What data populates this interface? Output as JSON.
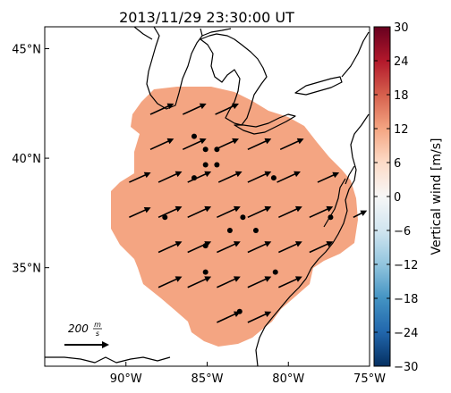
{
  "title": "2013/11/29 23:30:00 UT",
  "map": {
    "lon_range": [
      -95,
      -75
    ],
    "lat_range": [
      30.5,
      46
    ],
    "lon_ticks": [
      {
        "value": -90,
        "label": "90°W"
      },
      {
        "value": -85,
        "label": "85°W"
      },
      {
        "value": -80,
        "label": "80°W"
      },
      {
        "value": -75,
        "label": "75°W"
      }
    ],
    "lat_ticks": [
      {
        "value": 45,
        "label": "45°N"
      },
      {
        "value": 40,
        "label": "40°N"
      },
      {
        "value": 35,
        "label": "35°N"
      }
    ],
    "field_color": "#f4a582",
    "coast_color": "#000000",
    "sites": [
      {
        "lon": -85.8,
        "lat": 41.0
      },
      {
        "lon": -85.1,
        "lat": 40.4
      },
      {
        "lon": -84.4,
        "lat": 40.4
      },
      {
        "lon": -85.1,
        "lat": 39.7
      },
      {
        "lon": -84.4,
        "lat": 39.7
      },
      {
        "lon": -85.8,
        "lat": 39.1
      },
      {
        "lon": -80.9,
        "lat": 39.1
      },
      {
        "lon": -87.6,
        "lat": 37.3
      },
      {
        "lon": -82.8,
        "lat": 37.3
      },
      {
        "lon": -77.4,
        "lat": 37.3
      },
      {
        "lon": -83.6,
        "lat": 36.7
      },
      {
        "lon": -82.0,
        "lat": 36.7
      },
      {
        "lon": -85.1,
        "lat": 36.0
      },
      {
        "lon": -85.1,
        "lat": 34.8
      },
      {
        "lon": -80.8,
        "lat": 34.8
      },
      {
        "lon": -83.0,
        "lat": 33.0
      }
    ],
    "vectors": [
      {
        "lon": -88.5,
        "lat": 42.0,
        "u": 120,
        "v": 55
      },
      {
        "lon": -86.5,
        "lat": 42.0,
        "u": 120,
        "v": 55
      },
      {
        "lon": -84.5,
        "lat": 42.0,
        "u": 120,
        "v": 55
      },
      {
        "lon": -88.5,
        "lat": 40.4,
        "u": 120,
        "v": 55
      },
      {
        "lon": -86.5,
        "lat": 40.4,
        "u": 120,
        "v": 55
      },
      {
        "lon": -84.5,
        "lat": 40.4,
        "u": 120,
        "v": 55
      },
      {
        "lon": -82.5,
        "lat": 40.4,
        "u": 120,
        "v": 55
      },
      {
        "lon": -80.5,
        "lat": 40.4,
        "u": 120,
        "v": 55
      },
      {
        "lon": -89.8,
        "lat": 38.9,
        "u": 110,
        "v": 50
      },
      {
        "lon": -88.0,
        "lat": 38.9,
        "u": 120,
        "v": 55
      },
      {
        "lon": -86.2,
        "lat": 38.9,
        "u": 120,
        "v": 55
      },
      {
        "lon": -84.3,
        "lat": 38.9,
        "u": 120,
        "v": 55
      },
      {
        "lon": -82.5,
        "lat": 38.9,
        "u": 120,
        "v": 55
      },
      {
        "lon": -80.7,
        "lat": 38.9,
        "u": 120,
        "v": 55
      },
      {
        "lon": -78.2,
        "lat": 38.9,
        "u": 110,
        "v": 50
      },
      {
        "lon": -89.8,
        "lat": 37.3,
        "u": 110,
        "v": 50
      },
      {
        "lon": -88.0,
        "lat": 37.3,
        "u": 120,
        "v": 55
      },
      {
        "lon": -86.2,
        "lat": 37.3,
        "u": 120,
        "v": 55
      },
      {
        "lon": -84.4,
        "lat": 37.3,
        "u": 120,
        "v": 55
      },
      {
        "lon": -82.5,
        "lat": 37.3,
        "u": 120,
        "v": 55
      },
      {
        "lon": -80.6,
        "lat": 37.3,
        "u": 120,
        "v": 55
      },
      {
        "lon": -78.7,
        "lat": 37.3,
        "u": 120,
        "v": 55
      },
      {
        "lon": -76.0,
        "lat": 37.3,
        "u": 70,
        "v": 35
      },
      {
        "lon": -88.0,
        "lat": 35.7,
        "u": 120,
        "v": 55
      },
      {
        "lon": -86.2,
        "lat": 35.7,
        "u": 120,
        "v": 55
      },
      {
        "lon": -84.4,
        "lat": 35.7,
        "u": 120,
        "v": 55
      },
      {
        "lon": -82.5,
        "lat": 35.7,
        "u": 120,
        "v": 55
      },
      {
        "lon": -80.6,
        "lat": 35.7,
        "u": 120,
        "v": 55
      },
      {
        "lon": -78.7,
        "lat": 35.7,
        "u": 120,
        "v": 55
      },
      {
        "lon": -88.0,
        "lat": 34.1,
        "u": 120,
        "v": 55
      },
      {
        "lon": -86.2,
        "lat": 34.1,
        "u": 120,
        "v": 55
      },
      {
        "lon": -84.4,
        "lat": 34.1,
        "u": 120,
        "v": 55
      },
      {
        "lon": -82.5,
        "lat": 34.1,
        "u": 120,
        "v": 55
      },
      {
        "lon": -80.6,
        "lat": 34.1,
        "u": 120,
        "v": 55
      },
      {
        "lon": -84.4,
        "lat": 32.5,
        "u": 120,
        "v": 55
      },
      {
        "lon": -82.5,
        "lat": 32.5,
        "u": 120,
        "v": 55
      }
    ],
    "reference_vector": {
      "magnitude": 200,
      "label_number": "200",
      "label_unit_numerator": "m",
      "label_unit_denominator": "s"
    }
  },
  "colorbar": {
    "label": "Vertical wind [m/s]",
    "min": -30,
    "max": 30,
    "ticks": [
      {
        "value": 30,
        "label": "30"
      },
      {
        "value": 24,
        "label": "24"
      },
      {
        "value": 18,
        "label": "18"
      },
      {
        "value": 12,
        "label": "12"
      },
      {
        "value": 6,
        "label": "6"
      },
      {
        "value": 0,
        "label": "0"
      },
      {
        "value": -6,
        "label": "−6"
      },
      {
        "value": -12,
        "label": "−12"
      },
      {
        "value": -18,
        "label": "−18"
      },
      {
        "value": -24,
        "label": "−24"
      },
      {
        "value": -30,
        "label": "−30"
      }
    ],
    "stops": [
      "#053061",
      "#2166ac",
      "#4393c3",
      "#92c5de",
      "#d1e5f0",
      "#f7f7f7",
      "#fddbc7",
      "#f4a582",
      "#d6604d",
      "#b2182b",
      "#67001f"
    ]
  }
}
